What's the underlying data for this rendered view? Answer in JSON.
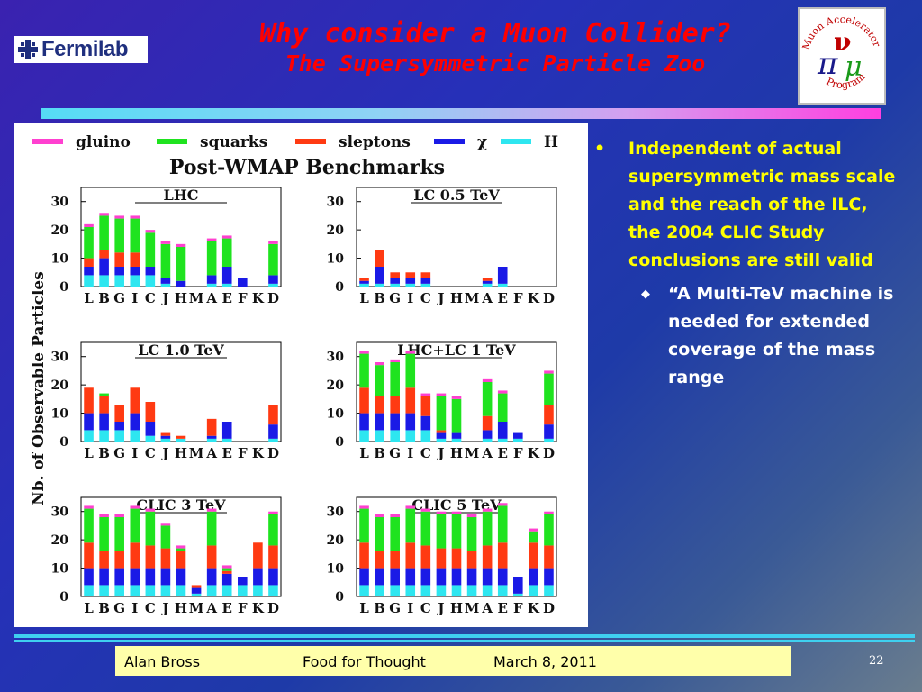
{
  "header": {
    "org_name": "Fermilab",
    "title": "Why consider a Muon Collider?",
    "subtitle": "The Supersymmetric Particle Zoo",
    "logo_text_top": "Muon Accelerator",
    "logo_text_bottom": "Program"
  },
  "figure": {
    "title": "Post-WMAP Benchmarks",
    "ylabel": "Nb. of Observable Particles",
    "benchmarks": [
      "L",
      "B",
      "G",
      "I",
      "C",
      "J",
      "H",
      "M",
      "A",
      "E",
      "F",
      "K",
      "D"
    ],
    "legend": [
      {
        "name": "gluino",
        "color": "#ff40d0"
      },
      {
        "name": "squarks",
        "color": "#1fe31f"
      },
      {
        "name": "sleptons",
        "color": "#ff3a12"
      },
      {
        "name": "χ",
        "color": "#1a1ae6"
      },
      {
        "name": "H",
        "color": "#2ee6f0"
      }
    ],
    "yticks": [
      0,
      10,
      20,
      30
    ]
  },
  "chart_data": [
    {
      "type": "bar",
      "title": "LHC",
      "stacked": true,
      "ylim": [
        0,
        35
      ],
      "categories": [
        "L",
        "B",
        "G",
        "I",
        "C",
        "J",
        "H",
        "M",
        "A",
        "E",
        "F",
        "K",
        "D"
      ],
      "series": [
        {
          "name": "H",
          "values": [
            4,
            4,
            4,
            4,
            4,
            1,
            0,
            0,
            1,
            1,
            0,
            0,
            1
          ]
        },
        {
          "name": "χ",
          "values": [
            3,
            6,
            3,
            3,
            3,
            2,
            2,
            0,
            3,
            6,
            3,
            0,
            3
          ]
        },
        {
          "name": "sleptons",
          "values": [
            3,
            3,
            5,
            5,
            0,
            0,
            0,
            0,
            0,
            0,
            0,
            0,
            0
          ]
        },
        {
          "name": "squarks",
          "values": [
            11,
            12,
            12,
            12,
            12,
            12,
            12,
            0,
            12,
            10,
            0,
            0,
            11
          ]
        },
        {
          "name": "gluino",
          "values": [
            1,
            1,
            1,
            1,
            1,
            1,
            1,
            0,
            1,
            1,
            0,
            0,
            1
          ]
        }
      ]
    },
    {
      "type": "bar",
      "title": "LC 0.5 TeV",
      "stacked": true,
      "ylim": [
        0,
        35
      ],
      "categories": [
        "L",
        "B",
        "G",
        "I",
        "C",
        "J",
        "H",
        "M",
        "A",
        "E",
        "F",
        "K",
        "D"
      ],
      "series": [
        {
          "name": "H",
          "values": [
            1,
            1,
            1,
            1,
            1,
            0,
            0,
            0,
            1,
            1,
            0,
            0,
            0
          ]
        },
        {
          "name": "χ",
          "values": [
            1,
            6,
            2,
            2,
            2,
            0,
            0,
            0,
            1,
            6,
            0,
            0,
            0
          ]
        },
        {
          "name": "sleptons",
          "values": [
            1,
            6,
            2,
            2,
            2,
            0,
            0,
            0,
            1,
            0,
            0,
            0,
            0
          ]
        },
        {
          "name": "squarks",
          "values": [
            0,
            0,
            0,
            0,
            0,
            0,
            0,
            0,
            0,
            0,
            0,
            0,
            0
          ]
        },
        {
          "name": "gluino",
          "values": [
            0,
            0,
            0,
            0,
            0,
            0,
            0,
            0,
            0,
            0,
            0,
            0,
            0
          ]
        }
      ]
    },
    {
      "type": "bar",
      "title": "LC 1.0 TeV",
      "stacked": true,
      "ylim": [
        0,
        35
      ],
      "categories": [
        "L",
        "B",
        "G",
        "I",
        "C",
        "J",
        "H",
        "M",
        "A",
        "E",
        "F",
        "K",
        "D"
      ],
      "series": [
        {
          "name": "H",
          "values": [
            4,
            4,
            4,
            4,
            2,
            1,
            1,
            0,
            1,
            1,
            0,
            0,
            1
          ]
        },
        {
          "name": "χ",
          "values": [
            6,
            6,
            3,
            6,
            5,
            1,
            0,
            0,
            1,
            6,
            0,
            0,
            5
          ]
        },
        {
          "name": "sleptons",
          "values": [
            9,
            6,
            6,
            9,
            7,
            1,
            1,
            0,
            6,
            0,
            0,
            0,
            7
          ]
        },
        {
          "name": "squarks",
          "values": [
            0,
            1,
            0,
            0,
            0,
            0,
            0,
            0,
            0,
            0,
            0,
            0,
            0
          ]
        },
        {
          "name": "gluino",
          "values": [
            0,
            0,
            0,
            0,
            0,
            0,
            0,
            0,
            0,
            0,
            0,
            0,
            0
          ]
        }
      ]
    },
    {
      "type": "bar",
      "title": "LHC+LC 1 TeV",
      "stacked": true,
      "ylim": [
        0,
        35
      ],
      "categories": [
        "L",
        "B",
        "G",
        "I",
        "C",
        "J",
        "H",
        "M",
        "A",
        "E",
        "F",
        "K",
        "D"
      ],
      "series": [
        {
          "name": "H",
          "values": [
            4,
            4,
            4,
            4,
            4,
            1,
            1,
            0,
            1,
            1,
            1,
            0,
            1
          ]
        },
        {
          "name": "χ",
          "values": [
            6,
            6,
            6,
            6,
            5,
            2,
            2,
            0,
            3,
            6,
            2,
            0,
            5
          ]
        },
        {
          "name": "sleptons",
          "values": [
            9,
            6,
            6,
            9,
            7,
            1,
            0,
            0,
            5,
            0,
            0,
            0,
            7
          ]
        },
        {
          "name": "squarks",
          "values": [
            12,
            11,
            12,
            12,
            0,
            12,
            12,
            0,
            12,
            10,
            0,
            0,
            11
          ]
        },
        {
          "name": "gluino",
          "values": [
            1,
            1,
            1,
            1,
            1,
            1,
            1,
            0,
            1,
            1,
            0,
            0,
            1
          ]
        }
      ]
    },
    {
      "type": "bar",
      "title": "CLIC 3 TeV",
      "stacked": true,
      "ylim": [
        0,
        35
      ],
      "categories": [
        "L",
        "B",
        "G",
        "I",
        "C",
        "J",
        "H",
        "M",
        "A",
        "E",
        "F",
        "K",
        "D"
      ],
      "series": [
        {
          "name": "H",
          "values": [
            4,
            4,
            4,
            4,
            4,
            4,
            4,
            1,
            4,
            4,
            4,
            4,
            4
          ]
        },
        {
          "name": "χ",
          "values": [
            6,
            6,
            6,
            6,
            6,
            6,
            6,
            2,
            6,
            4,
            3,
            6,
            6
          ]
        },
        {
          "name": "sleptons",
          "values": [
            9,
            6,
            6,
            9,
            8,
            7,
            6,
            1,
            8,
            1,
            0,
            9,
            8
          ]
        },
        {
          "name": "squarks",
          "values": [
            12,
            12,
            12,
            12,
            12,
            8,
            1,
            0,
            12,
            1,
            0,
            0,
            11
          ]
        },
        {
          "name": "gluino",
          "values": [
            1,
            1,
            1,
            1,
            1,
            1,
            1,
            0,
            1,
            1,
            0,
            0,
            1
          ]
        }
      ]
    },
    {
      "type": "bar",
      "title": "CLIC 5 TeV",
      "stacked": true,
      "ylim": [
        0,
        35
      ],
      "categories": [
        "L",
        "B",
        "G",
        "I",
        "C",
        "J",
        "H",
        "M",
        "A",
        "E",
        "F",
        "K",
        "D"
      ],
      "series": [
        {
          "name": "H",
          "values": [
            4,
            4,
            4,
            4,
            4,
            4,
            4,
            4,
            4,
            4,
            1,
            4,
            4
          ]
        },
        {
          "name": "χ",
          "values": [
            6,
            6,
            6,
            6,
            6,
            6,
            6,
            6,
            6,
            6,
            6,
            6,
            6
          ]
        },
        {
          "name": "sleptons",
          "values": [
            9,
            6,
            6,
            9,
            8,
            7,
            7,
            6,
            8,
            9,
            0,
            9,
            8
          ]
        },
        {
          "name": "squarks",
          "values": [
            12,
            12,
            12,
            12,
            12,
            12,
            12,
            12,
            12,
            13,
            0,
            4,
            11
          ]
        },
        {
          "name": "gluino",
          "values": [
            1,
            1,
            1,
            1,
            1,
            1,
            1,
            1,
            1,
            1,
            0,
            1,
            1
          ]
        }
      ]
    }
  ],
  "bullets": {
    "main": "Independent of actual supersymmetric mass scale and the reach of the ILC, the 2004 CLIC Study conclusions are still valid",
    "sub": "“A Multi-TeV machine is needed for extended coverage of the mass range"
  },
  "footer": {
    "author": "Alan Bross",
    "topic": "Food for Thought",
    "date": "March 8, 2011",
    "page": "22"
  }
}
